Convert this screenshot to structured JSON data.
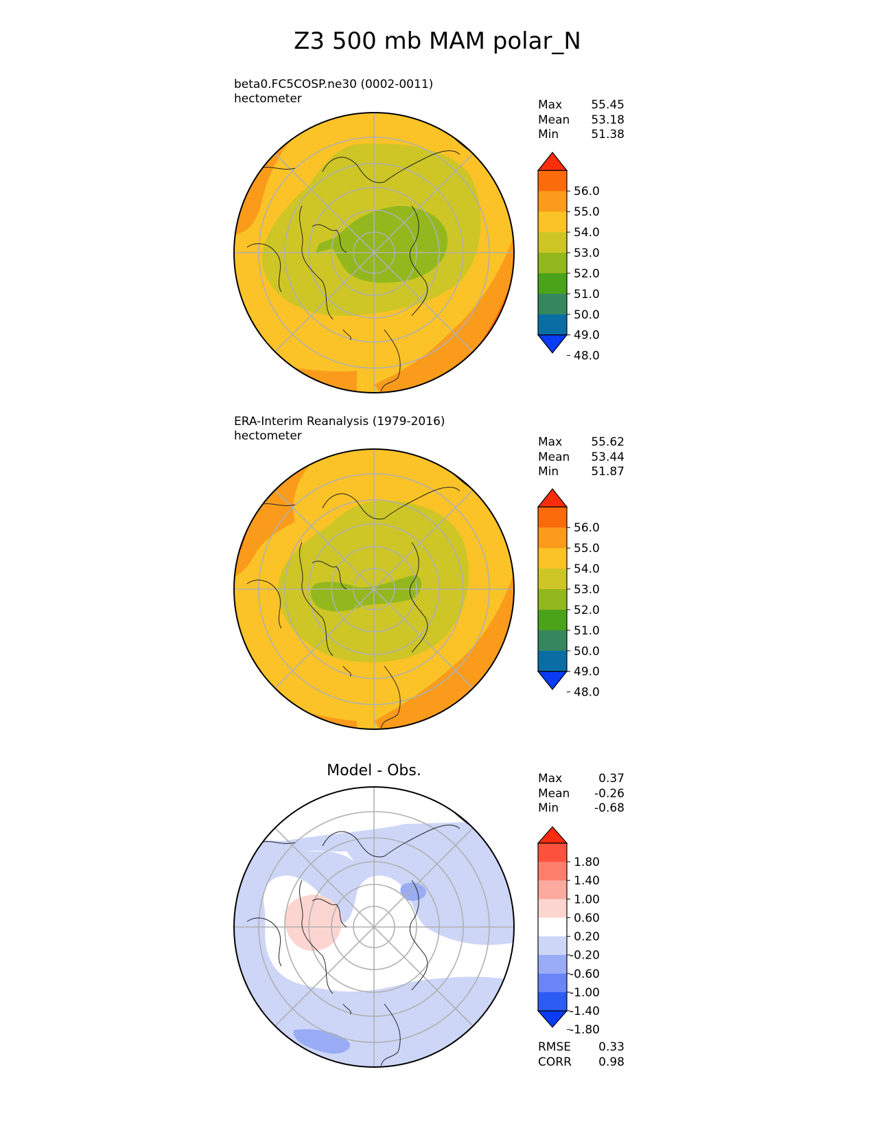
{
  "title": "Z3 500 mb MAM polar_N",
  "colors": {
    "abs_levels": [
      "#0a3cf5",
      "#0a6ea5",
      "#358760",
      "#4aa319",
      "#93b81d",
      "#cdc626",
      "#fbc327",
      "#fb9b1b",
      "#fb6b0c",
      "#fb2d0a"
    ],
    "diff_levels": [
      "#0a3cf5",
      "#2c5cf3",
      "#6a85f5",
      "#99acf5",
      "#cdd6f7",
      "#ffffff",
      "#fdd5d0",
      "#fcaaa0",
      "#fc7f6b",
      "#fc523d",
      "#fb2c0f"
    ]
  },
  "chart_data": [
    {
      "type": "heatmap",
      "projection": "north polar stereographic",
      "title": "",
      "subtitle": "beta0.FC5COSP.ne30 (0002-0011)",
      "units": "hectometer",
      "stats": [
        {
          "label": "Max",
          "value": "55.45"
        },
        {
          "label": "Mean",
          "value": "53.18"
        },
        {
          "label": "Min",
          "value": "51.38"
        }
      ],
      "colorbar": {
        "ticks": [
          "56.0",
          "55.0",
          "54.0",
          "53.0",
          "52.0",
          "51.0",
          "50.0",
          "49.0",
          "48.0"
        ],
        "levels": [
          47,
          48,
          49,
          50,
          51,
          52,
          53,
          54,
          55,
          56,
          57
        ],
        "extend": "both"
      }
    },
    {
      "type": "heatmap",
      "projection": "north polar stereographic",
      "title": "",
      "subtitle": "ERA-Interim Reanalysis (1979-2016)",
      "units": "hectometer",
      "stats": [
        {
          "label": "Max",
          "value": "55.62"
        },
        {
          "label": "Mean",
          "value": "53.44"
        },
        {
          "label": "Min",
          "value": "51.87"
        }
      ],
      "colorbar": {
        "ticks": [
          "56.0",
          "55.0",
          "54.0",
          "53.0",
          "52.0",
          "51.0",
          "50.0",
          "49.0",
          "48.0"
        ],
        "levels": [
          47,
          48,
          49,
          50,
          51,
          52,
          53,
          54,
          55,
          56,
          57
        ],
        "extend": "both"
      }
    },
    {
      "type": "heatmap",
      "projection": "north polar stereographic",
      "title": "Model - Obs.",
      "subtitle": "",
      "units": "",
      "stats": [
        {
          "label": "Max",
          "value": "0.37"
        },
        {
          "label": "Mean",
          "value": "-0.26"
        },
        {
          "label": "Min",
          "value": "-0.68"
        }
      ],
      "metrics": [
        {
          "label": "RMSE",
          "value": "0.33"
        },
        {
          "label": "CORR",
          "value": "0.98"
        }
      ],
      "colorbar": {
        "ticks": [
          "1.80",
          "1.40",
          "1.00",
          "0.60",
          "0.20",
          "-0.20",
          "-0.60",
          "-1.00",
          "-1.40",
          "-1.80"
        ],
        "levels": [
          -1.8,
          -1.4,
          -1.0,
          -0.6,
          -0.2,
          0.2,
          0.6,
          1.0,
          1.4,
          1.8
        ],
        "extend": "both"
      }
    }
  ]
}
